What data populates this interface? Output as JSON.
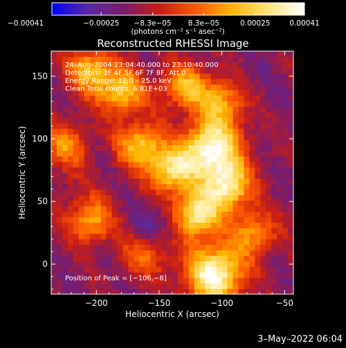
{
  "chart_data": {
    "type": "heatmap",
    "title": "Reconstructed RHESSI Image",
    "xlabel": "Heliocentric X (arcsec)",
    "ylabel": "Heliocentric Y (arcsec)",
    "xlim": [
      -236,
      -43
    ],
    "ylim": [
      -24,
      170
    ],
    "xticks": [
      {
        "value": -200,
        "label": "−200"
      },
      {
        "value": -150,
        "label": "−150"
      },
      {
        "value": -100,
        "label": "−100"
      },
      {
        "value": -50,
        "label": "−50"
      }
    ],
    "yticks": [
      {
        "value": 0,
        "label": "0"
      },
      {
        "value": 50,
        "label": "50"
      },
      {
        "value": 100,
        "label": "100"
      },
      {
        "value": 150,
        "label": "150"
      }
    ],
    "colorbar": {
      "range": [
        -0.00041,
        0.00041
      ],
      "ticks": [
        {
          "value": -0.00041,
          "label": "−0.00041"
        },
        {
          "value": -0.00025,
          "label": "−0.00025"
        },
        {
          "value": -8.3e-05,
          "label": "−8.3e−05"
        },
        {
          "value": 8.3e-05,
          "label": "8.3e−05"
        },
        {
          "value": 0.00025,
          "label": "0.00025"
        },
        {
          "value": 0.00041,
          "label": "0.00041"
        }
      ],
      "unit_label": "(photons cm⁻² s⁻¹ asec⁻²)",
      "colors": [
        "#0000ff",
        "#5a2aa0",
        "#7a1c6a",
        "#c81e14",
        "#ff5a00",
        "#ffb400",
        "#ffe680",
        "#ffffff"
      ]
    },
    "annotations": [
      "24–Aug–2004 23:04:40.000 to 23:10:40.000",
      "Detectors: 3F 4F 5F 6F 7F 8F, Att 0",
      "Energy Range: 12.0 – 25.0 keV",
      "Clean     Total counts: 6.81E+03"
    ],
    "peak_label": "Position of Peak = [−106,−8]",
    "peak": [
      -106,
      -8
    ],
    "bright_regions": [
      {
        "x": -108,
        "y": 92,
        "intensity": 0.00041
      },
      {
        "x": -106,
        "y": -8,
        "intensity": 0.0004
      },
      {
        "x": -120,
        "y": 40,
        "intensity": 0.00033
      },
      {
        "x": -95,
        "y": 62,
        "intensity": 0.0003
      },
      {
        "x": -140,
        "y": 75,
        "intensity": 0.00026
      },
      {
        "x": -165,
        "y": 95,
        "intensity": 0.00022
      },
      {
        "x": -205,
        "y": 35,
        "intensity": 0.00017
      },
      {
        "x": -180,
        "y": 138,
        "intensity": 0.00022
      },
      {
        "x": -205,
        "y": 155,
        "intensity": 0.0002
      },
      {
        "x": -130,
        "y": 142,
        "intensity": 0.00018
      },
      {
        "x": -100,
        "y": 130,
        "intensity": 0.00016
      },
      {
        "x": -75,
        "y": 25,
        "intensity": 0.00014
      },
      {
        "x": -160,
        "y": 10,
        "intensity": 0.00012
      },
      {
        "x": -225,
        "y": 95,
        "intensity": 0.00012
      }
    ],
    "dark_regions": [
      {
        "x": -155,
        "y": 28,
        "intensity": -0.0003
      },
      {
        "x": -75,
        "y": 150,
        "intensity": -0.00018
      },
      {
        "x": -215,
        "y": 65,
        "intensity": -0.00012
      }
    ]
  },
  "timestamp": "3–May–2022 06:04"
}
